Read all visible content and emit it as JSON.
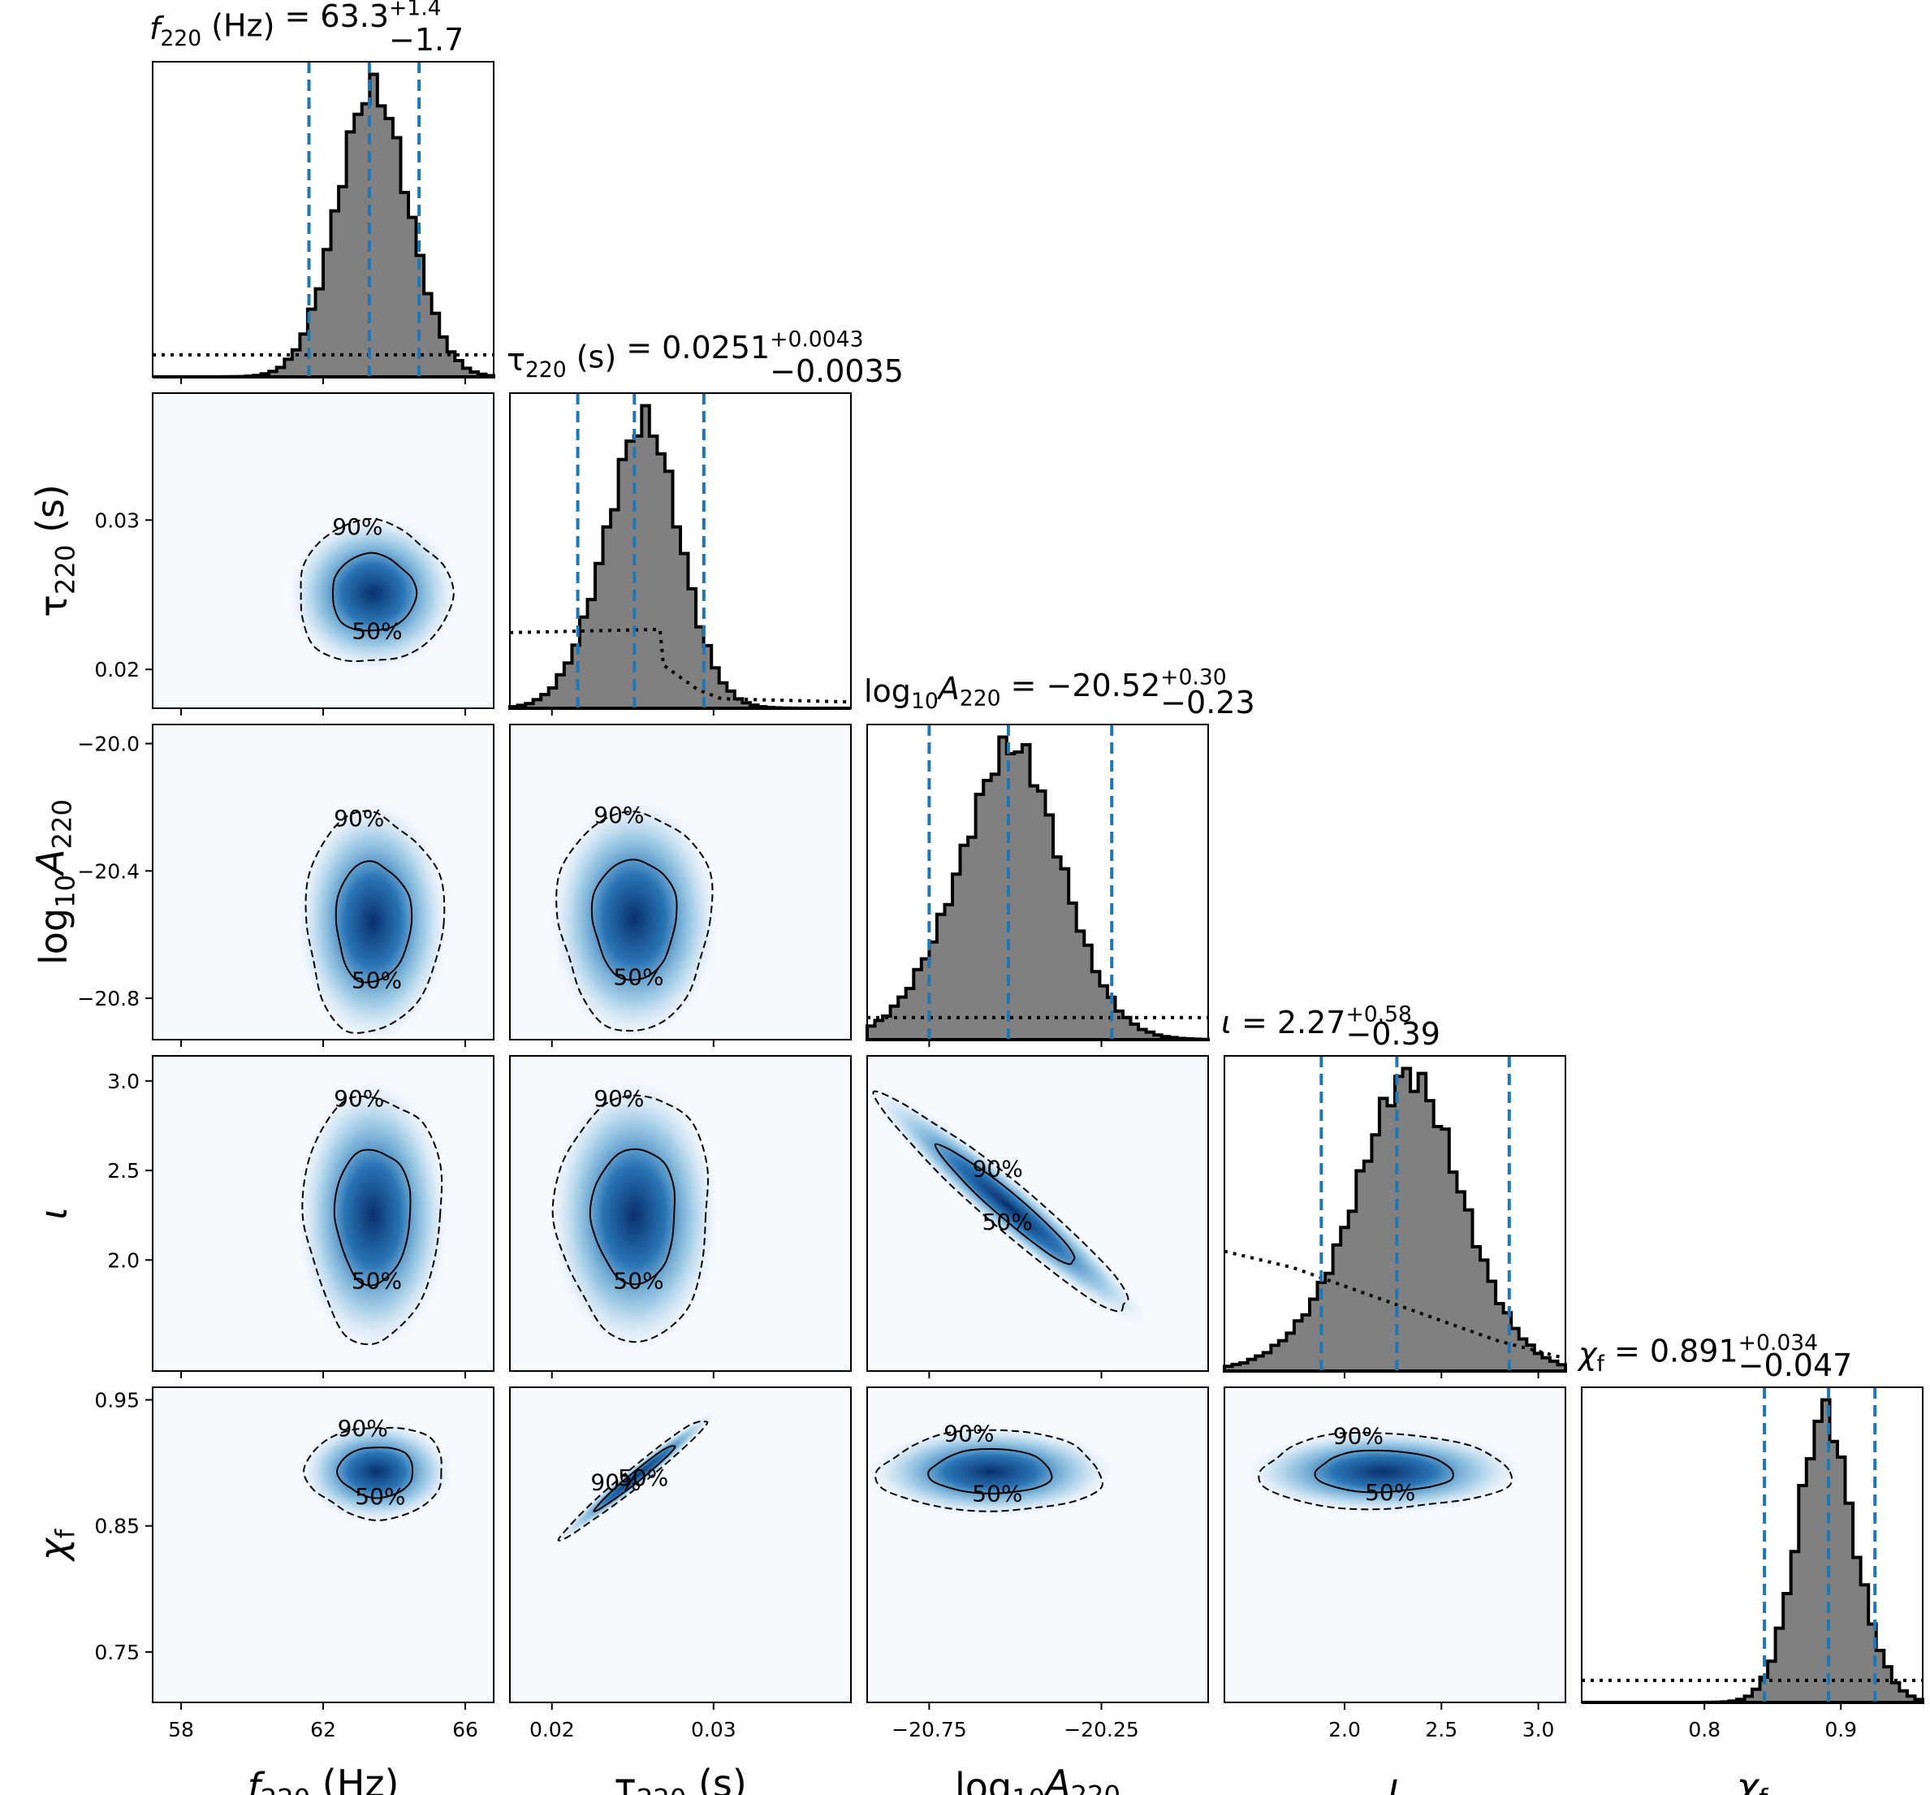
{
  "chart_data": {
    "type": "corner",
    "colors": {
      "histogram_fill": "#808080",
      "histogram_edge": "#000000",
      "quantile_line": "#1f77b4",
      "density_low": "#f7fbff",
      "density_high": "#08306b",
      "prior_line": "#000000"
    },
    "parameters": [
      {
        "key": "f220",
        "label": "f220 (Hz)",
        "title": "f220 (Hz) = 63.3 +1.4 −1.7",
        "median": 63.3,
        "err_plus": 1.4,
        "err_minus": 1.7,
        "range": [
          57.2,
          66.8
        ],
        "ticks": [
          58,
          62,
          66
        ],
        "tick_labels": [
          "58",
          "62",
          "66"
        ],
        "hist_mean": 63.4,
        "hist_sd": 1.0,
        "hist_skew": 0
      },
      {
        "key": "tau220",
        "label": "τ220 (s)",
        "title": "τ220 (s) = 0.0251 +0.0043 −0.0035",
        "median": 0.0251,
        "err_plus": 0.0043,
        "err_minus": 0.0035,
        "range": [
          0.0174,
          0.0385
        ],
        "ticks": [
          0.02,
          0.03
        ],
        "tick_labels": [
          "0.02",
          "0.03"
        ],
        "hist_mean": 0.0251,
        "hist_sd": 0.0024,
        "hist_skew": 0.6
      },
      {
        "key": "logA220",
        "label": "log10A220",
        "title": "log10A220 = −20.52 +0.30 −0.23",
        "median": -20.52,
        "err_plus": 0.3,
        "err_minus": 0.23,
        "range": [
          -20.93,
          -19.94
        ],
        "ticks": [
          -20.75,
          -20.25
        ],
        "tick_labels": [
          "−20.75",
          "−20.25"
        ],
        "y_ticks": [
          -20.0,
          -20.4,
          -20.8
        ],
        "y_tick_labels": [
          "−20.0",
          "−20.4",
          "−20.8"
        ],
        "hist_mean": -20.56,
        "hist_sd": 0.16,
        "hist_skew": 0.8
      },
      {
        "key": "iota",
        "label": "ι",
        "title": "ι = 2.27 +0.58 −0.39",
        "median": 2.27,
        "err_plus": 0.58,
        "err_minus": 0.39,
        "range": [
          1.38,
          3.14
        ],
        "ticks": [
          2.0,
          2.5,
          3.0
        ],
        "tick_labels": [
          "2.0",
          "2.5",
          "3.0"
        ],
        "hist_mean": 2.2,
        "hist_sd": 0.32,
        "hist_skew": 1.2
      },
      {
        "key": "chif",
        "label": "χf",
        "title": "χf = 0.891 +0.034 −0.047",
        "median": 0.891,
        "err_plus": 0.034,
        "err_minus": 0.047,
        "range": [
          0.71,
          0.96
        ],
        "ticks": [
          0.8,
          0.9
        ],
        "tick_labels": [
          "0.8",
          "0.9"
        ],
        "y_ticks": [
          0.95,
          0.85,
          0.75
        ],
        "y_tick_labels": [
          "0.95",
          "0.85",
          "0.75"
        ],
        "hist_mean": 0.895,
        "hist_sd": 0.022,
        "hist_skew": -0.8
      }
    ],
    "y_axis_ticks": {
      "tau220": {
        "ticks": [
          0.03,
          0.02
        ],
        "tick_labels": [
          "0.03",
          "0.02"
        ]
      },
      "logA220": {
        "ticks": [
          -20.0,
          -20.4,
          -20.8
        ],
        "tick_labels": [
          "−20.0",
          "−20.4",
          "−20.8"
        ]
      },
      "iota": {
        "ticks": [
          3.0,
          2.5,
          2.0
        ],
        "tick_labels": [
          "3.0",
          "2.5",
          "2.0"
        ]
      },
      "chif": {
        "ticks": [
          0.95,
          0.85,
          0.75
        ],
        "tick_labels": [
          "0.95",
          "0.85",
          "0.75"
        ]
      }
    },
    "contour_levels": [
      "50%",
      "90%"
    ],
    "pairs": [
      {
        "x": "f220",
        "y": "tau220",
        "mx": 63.4,
        "my": 0.0251,
        "sx": 1.0,
        "sy": 0.0022,
        "rho": 0.0
      },
      {
        "x": "f220",
        "y": "logA220",
        "mx": 63.4,
        "my": -20.56,
        "sx": 0.9,
        "sy": 0.16,
        "rho": 0.0
      },
      {
        "x": "tau220",
        "y": "logA220",
        "mx": 0.0251,
        "my": -20.55,
        "sx": 0.0022,
        "sy": 0.16,
        "rho": 0.0
      },
      {
        "x": "f220",
        "y": "iota",
        "mx": 63.4,
        "my": 2.25,
        "sx": 0.9,
        "sy": 0.32,
        "rho": 0.0
      },
      {
        "x": "tau220",
        "y": "iota",
        "mx": 0.0251,
        "my": 2.25,
        "sx": 0.0022,
        "sy": 0.32,
        "rho": 0.0
      },
      {
        "x": "logA220",
        "y": "iota",
        "mx": -20.52,
        "my": 2.3,
        "sx": 0.17,
        "sy": 0.28,
        "rho": -0.96
      },
      {
        "x": "f220",
        "y": "chif",
        "mx": 63.5,
        "my": 0.893,
        "sx": 0.9,
        "sy": 0.017,
        "rho": 0.0
      },
      {
        "x": "tau220",
        "y": "chif",
        "mx": 0.0252,
        "my": 0.889,
        "sx": 0.0021,
        "sy": 0.022,
        "rho": 0.98
      },
      {
        "x": "logA220",
        "y": "chif",
        "mx": -20.57,
        "my": 0.893,
        "sx": 0.15,
        "sy": 0.015,
        "rho": 0.0
      },
      {
        "x": "iota",
        "y": "chif",
        "mx": 2.2,
        "my": 0.893,
        "sx": 0.3,
        "sy": 0.014,
        "rho": 0.0
      }
    ]
  }
}
